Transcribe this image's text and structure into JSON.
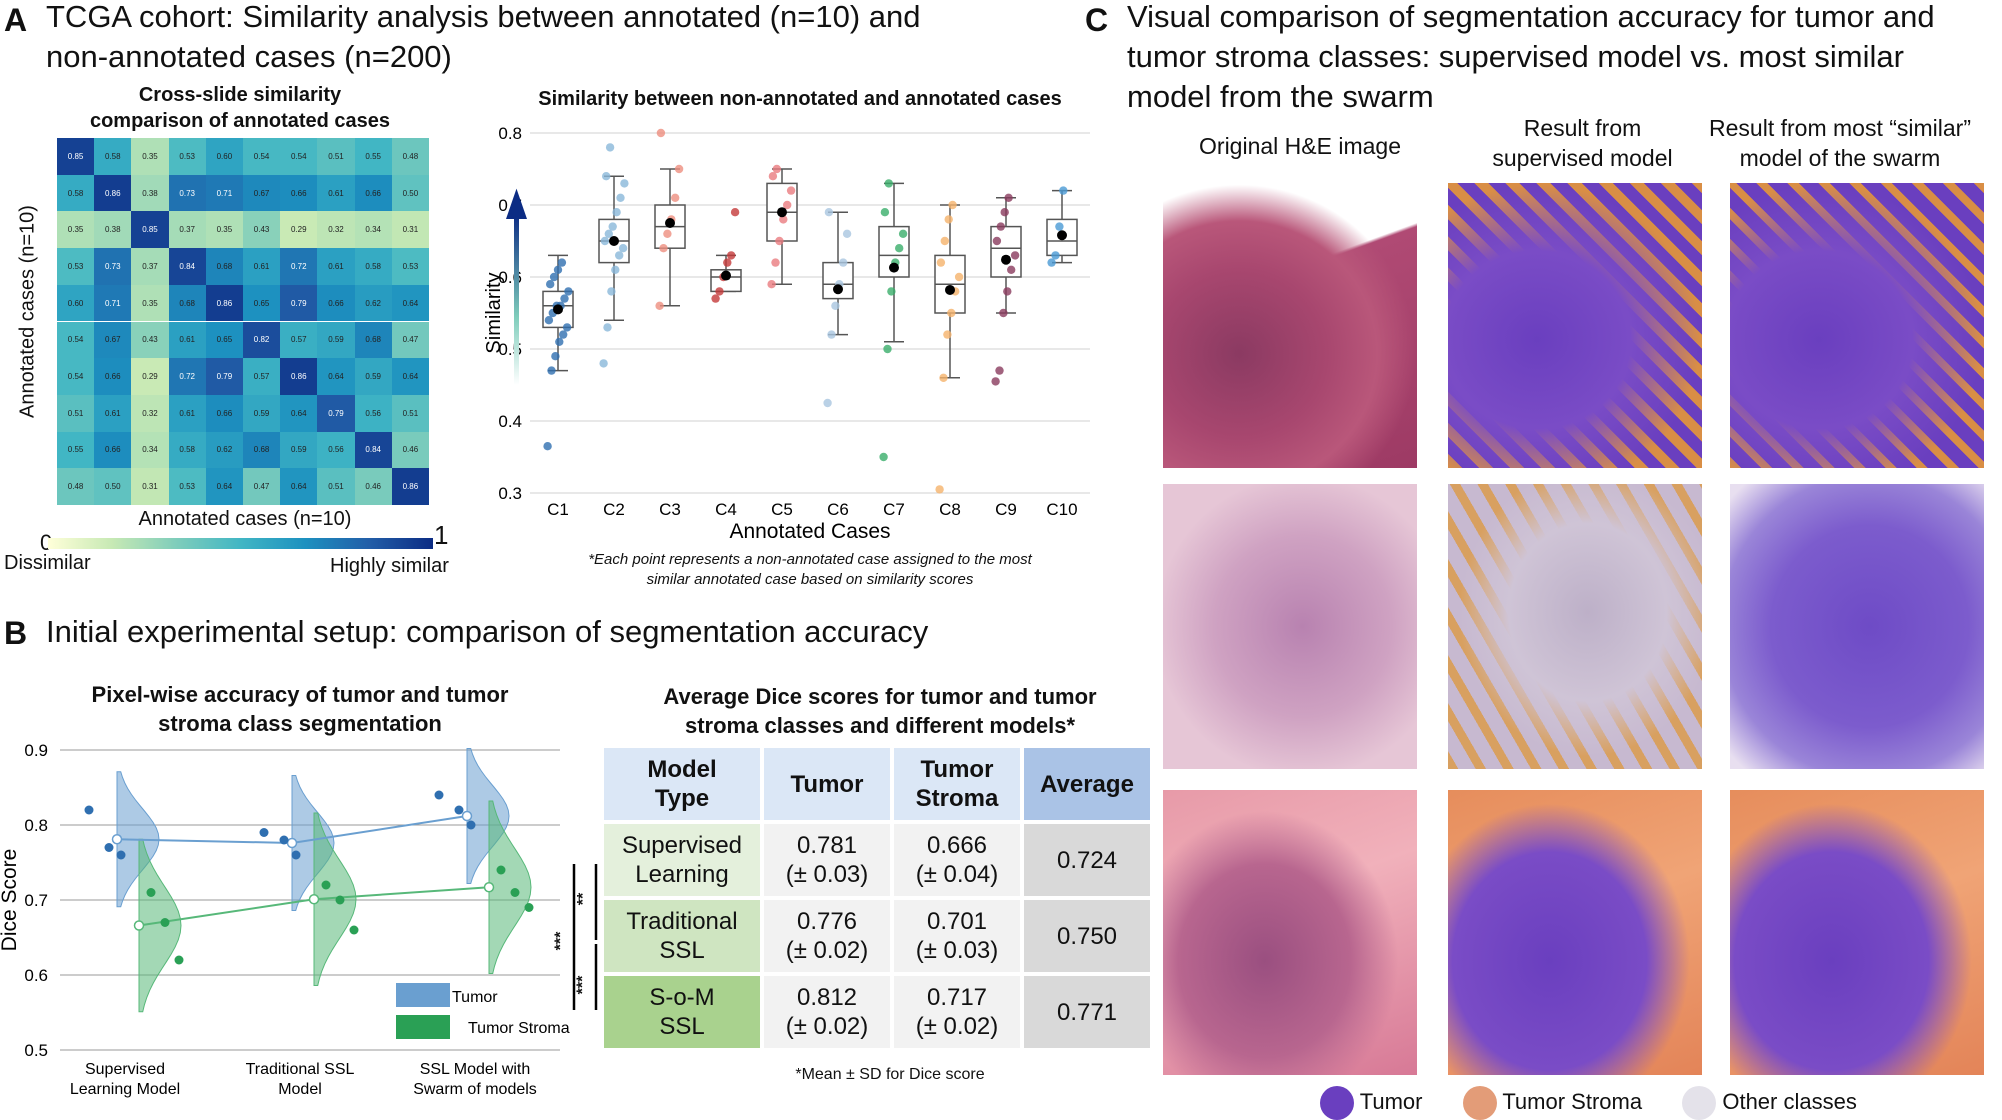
{
  "panelA": {
    "letter": "A",
    "title_line1": "TCGA cohort: Similarity analysis between annotated (n=10) and",
    "title_line2": "non-annotated cases (n=200)",
    "heatmap": {
      "title_line1": "Cross-slide similarity",
      "title_line2": "comparison of annotated cases",
      "ylabel": "Annotated cases (n=10)",
      "xlabel": "Annotated cases (n=10)",
      "cbar_min": "0",
      "cbar_max": "1",
      "cbar_left_label": "Dissimilar",
      "cbar_right_label": "Highly similar",
      "values": [
        [
          0.85,
          0.58,
          0.35,
          0.53,
          0.6,
          0.54,
          0.54,
          0.51,
          0.55,
          0.48
        ],
        [
          0.58,
          0.86,
          0.38,
          0.73,
          0.71,
          0.67,
          0.66,
          0.61,
          0.66,
          0.5
        ],
        [
          0.35,
          0.38,
          0.85,
          0.37,
          0.35,
          0.43,
          0.29,
          0.32,
          0.34,
          0.31
        ],
        [
          0.53,
          0.73,
          0.37,
          0.84,
          0.68,
          0.61,
          0.72,
          0.61,
          0.58,
          0.53
        ],
        [
          0.6,
          0.71,
          0.35,
          0.68,
          0.86,
          0.65,
          0.79,
          0.66,
          0.62,
          0.64
        ],
        [
          0.54,
          0.67,
          0.43,
          0.61,
          0.65,
          0.82,
          0.57,
          0.59,
          0.68,
          0.47
        ],
        [
          0.54,
          0.66,
          0.29,
          0.72,
          0.79,
          0.57,
          0.86,
          0.64,
          0.59,
          0.64
        ],
        [
          0.51,
          0.61,
          0.32,
          0.61,
          0.66,
          0.59,
          0.64,
          0.79,
          0.56,
          0.51
        ],
        [
          0.55,
          0.66,
          0.34,
          0.58,
          0.62,
          0.68,
          0.59,
          0.56,
          0.84,
          0.46
        ],
        [
          0.48,
          0.5,
          0.31,
          0.53,
          0.64,
          0.47,
          0.64,
          0.51,
          0.46,
          0.86
        ]
      ]
    },
    "boxplot": {
      "title": "Similarity between non-annotated and annotated cases",
      "ylabel": "Similarity",
      "xlabel": "Annotated Cases",
      "yticks": [
        "0.3",
        "0.4",
        "0.5",
        "0.6",
        "0.7",
        "0.8"
      ],
      "note_line1": "*Each point represents a non-annotated case assigned to the most",
      "note_line2": "similar annotated case based on similarity scores"
    }
  },
  "panelB": {
    "letter": "B",
    "title": "Initial experimental setup: comparison of segmentation accuracy",
    "violin": {
      "title_line1": "Pixel-wise accuracy of tumor and tumor",
      "title_line2": "stroma class segmentation",
      "ylabel": "Dice Score",
      "yticks": [
        "0.5",
        "0.6",
        "0.7",
        "0.8",
        "0.9"
      ],
      "groups": [
        {
          "line1": "Supervised",
          "line2": "Learning Model"
        },
        {
          "line1": "Traditional SSL",
          "line2": "Model"
        },
        {
          "line1": "SSL Model with",
          "line2": "Swarm of models"
        }
      ],
      "legend_tumor": "Tumor",
      "legend_stroma": "Tumor Stroma",
      "sig_inner_top": "**",
      "sig_inner_bottom": "***",
      "sig_outer": "***"
    },
    "table": {
      "title_line1": "Average Dice scores for tumor and tumor",
      "title_line2": "stroma classes and different models*",
      "headers": {
        "model_l1": "Model",
        "model_l2": "Type",
        "tumor": "Tumor",
        "stroma_l1": "Tumor",
        "stroma_l2": "Stroma",
        "avg": "Average"
      },
      "rows": [
        {
          "name_l1": "Supervised",
          "name_l2": "Learning",
          "tumor_l1": "0.781",
          "tumor_l2": "(± 0.03)",
          "stroma_l1": "0.666",
          "stroma_l2": "(± 0.04)",
          "avg": "0.724"
        },
        {
          "name_l1": "Traditional",
          "name_l2": "SSL",
          "tumor_l1": "0.776",
          "tumor_l2": "(± 0.02)",
          "stroma_l1": "0.701",
          "stroma_l2": "(± 0.03)",
          "avg": "0.750"
        },
        {
          "name_l1": "S-o-M",
          "name_l2": "SSL",
          "tumor_l1": "0.812",
          "tumor_l2": "(± 0.02)",
          "stroma_l1": "0.717",
          "stroma_l2": "(± 0.02)",
          "avg": "0.771"
        }
      ],
      "note": "*Mean ± SD for Dice score"
    }
  },
  "panelC": {
    "letter": "C",
    "title_line1": "Visual comparison of segmentation accuracy for tumor and",
    "title_line2": "tumor stroma classes: supervised model vs. most similar",
    "title_line3": "model from the swarm",
    "col1": "Original H&E image",
    "col2_l1": "Result from",
    "col2_l2": "supervised model",
    "col3_l1": "Result from most “similar”",
    "col3_l2": "model of the swarm",
    "legend": [
      {
        "label": "Tumor",
        "color": "#6a3fbf"
      },
      {
        "label": "Tumor Stroma",
        "color": "#e39c78"
      },
      {
        "label": "Other classes",
        "color": "#e4e2ea"
      }
    ]
  },
  "chart_data": [
    {
      "type": "heatmap",
      "title": "Cross-slide similarity comparison of annotated cases",
      "xlabel": "Annotated cases (n=10)",
      "ylabel": "Annotated cases (n=10)",
      "range": [
        0,
        1
      ]
    },
    {
      "type": "box",
      "title": "Similarity between non-annotated and annotated cases",
      "xlabel": "Annotated Cases",
      "ylabel": "Similarity",
      "ylim": [
        0.3,
        0.8
      ],
      "categories": [
        "C1",
        "C2",
        "C3",
        "C4",
        "C5",
        "C6",
        "C7",
        "C8",
        "C9",
        "C10"
      ],
      "colors": [
        "#2f6fb0",
        "#8ab8da",
        "#ee8e80",
        "#c43a3a",
        "#ea7c80",
        "#a9c6e0",
        "#3aae6a",
        "#f5b36b",
        "#8a3b5e",
        "#4a9ad4"
      ],
      "box": [
        {
          "min": 0.47,
          "q1": 0.53,
          "median": 0.56,
          "q3": 0.58,
          "max": 0.63,
          "mean": 0.555,
          "points": [
            0.365,
            0.47,
            0.49,
            0.51,
            0.52,
            0.53,
            0.54,
            0.55,
            0.56,
            0.56,
            0.57,
            0.58,
            0.59,
            0.6,
            0.61,
            0.62
          ]
        },
        {
          "min": 0.54,
          "q1": 0.62,
          "median": 0.65,
          "q3": 0.68,
          "max": 0.74,
          "mean": 0.65,
          "points": [
            0.48,
            0.53,
            0.58,
            0.61,
            0.63,
            0.64,
            0.65,
            0.66,
            0.67,
            0.69,
            0.71,
            0.73,
            0.74,
            0.78
          ]
        },
        {
          "min": 0.56,
          "q1": 0.64,
          "median": 0.67,
          "q3": 0.7,
          "max": 0.75,
          "mean": 0.675,
          "points": [
            0.56,
            0.64,
            0.66,
            0.68,
            0.71,
            0.75,
            0.8
          ]
        },
        {
          "min": 0.58,
          "q1": 0.58,
          "median": 0.6,
          "q3": 0.61,
          "max": 0.63,
          "mean": 0.602,
          "points": [
            0.57,
            0.58,
            0.6,
            0.62,
            0.63,
            0.69
          ]
        },
        {
          "min": 0.59,
          "q1": 0.65,
          "median": 0.69,
          "q3": 0.73,
          "max": 0.75,
          "mean": 0.69,
          "points": [
            0.59,
            0.62,
            0.65,
            0.68,
            0.7,
            0.72,
            0.74,
            0.75
          ]
        },
        {
          "min": 0.52,
          "q1": 0.57,
          "median": 0.59,
          "q3": 0.62,
          "max": 0.69,
          "mean": 0.583,
          "points": [
            0.425,
            0.52,
            0.56,
            0.59,
            0.62,
            0.66,
            0.69
          ]
        },
        {
          "min": 0.51,
          "q1": 0.6,
          "median": 0.63,
          "q3": 0.67,
          "max": 0.73,
          "mean": 0.613,
          "points": [
            0.35,
            0.5,
            0.58,
            0.62,
            0.64,
            0.66,
            0.69,
            0.73
          ]
        },
        {
          "min": 0.46,
          "q1": 0.55,
          "median": 0.59,
          "q3": 0.63,
          "max": 0.7,
          "mean": 0.582,
          "points": [
            0.305,
            0.46,
            0.52,
            0.55,
            0.58,
            0.6,
            0.62,
            0.65,
            0.68,
            0.7
          ]
        },
        {
          "min": 0.55,
          "q1": 0.6,
          "median": 0.64,
          "q3": 0.67,
          "max": 0.71,
          "mean": 0.624,
          "points": [
            0.455,
            0.47,
            0.55,
            0.58,
            0.61,
            0.63,
            0.65,
            0.67,
            0.69,
            0.71
          ]
        },
        {
          "min": 0.62,
          "q1": 0.63,
          "median": 0.65,
          "q3": 0.68,
          "max": 0.72,
          "mean": 0.658,
          "points": [
            0.62,
            0.63,
            0.67,
            0.72
          ]
        }
      ]
    },
    {
      "type": "violin",
      "title": "Pixel-wise accuracy of tumor and tumor stroma class segmentation",
      "ylabel": "Dice Score",
      "ylim": [
        0.5,
        0.9
      ],
      "categories": [
        "Supervised Learning Model",
        "Traditional SSL Model",
        "SSL Model with Swarm of models"
      ],
      "series": [
        {
          "name": "Tumor",
          "color": "#6a9fd0",
          "means": [
            0.781,
            0.776,
            0.812
          ],
          "points": [
            [
              0.82,
              0.77,
              0.76
            ],
            [
              0.79,
              0.78,
              0.76
            ],
            [
              0.84,
              0.82,
              0.8
            ]
          ]
        },
        {
          "name": "Tumor Stroma",
          "color": "#57b879",
          "means": [
            0.666,
            0.701,
            0.717
          ],
          "points": [
            [
              0.71,
              0.67,
              0.62
            ],
            [
              0.72,
              0.7,
              0.66
            ],
            [
              0.74,
              0.71,
              0.69
            ]
          ]
        }
      ]
    }
  ]
}
